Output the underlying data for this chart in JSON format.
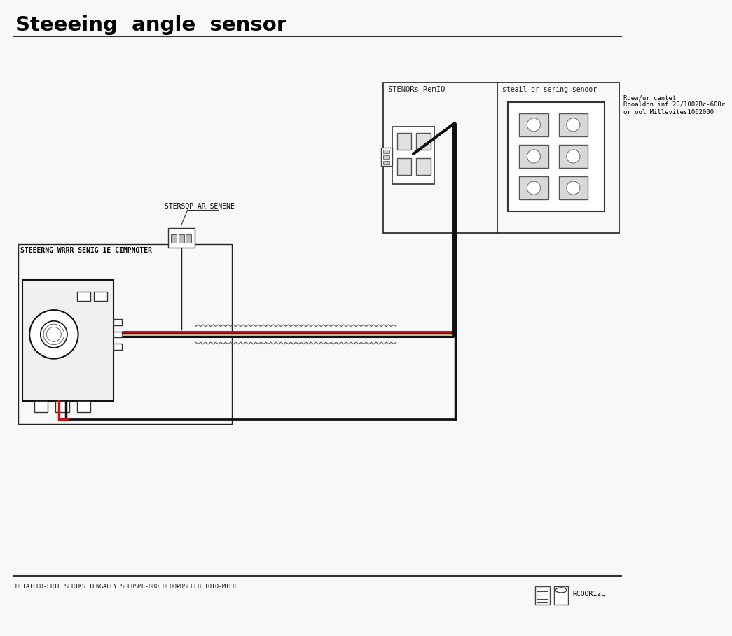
{
  "title": "Steeeing  angle  sensor",
  "title_fontsize": 21,
  "title_fontweight": "bold",
  "bg_color": "#f8f8f8",
  "footer_text": "DETATCRD-ERIE SERIKS IENGALEY SCERSME-080 DEQOPDSEEEB TOTO-MTER",
  "footer_right": "RCOOR12E",
  "left_box_label": "STEEERNG WRRR SENIG 1E CIMPNOTER",
  "middle_label": "STERSOP AR SENENE",
  "right_box_top_label": "STENORs RemIO",
  "right_box_bot_label": "steail or sering senoor",
  "right_note": "Rdew/ur cantet\nRpoaldon inf 20/1002Bc-600r\nor ool Millevites1002000"
}
